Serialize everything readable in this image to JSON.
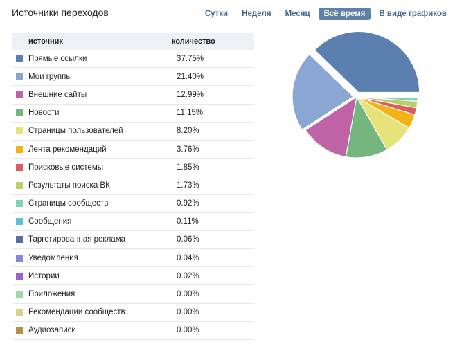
{
  "header": {
    "title": "Источники переходов",
    "tabs": [
      {
        "label": "Сутки",
        "active": false
      },
      {
        "label": "Неделя",
        "active": false
      },
      {
        "label": "Месяц",
        "active": false
      },
      {
        "label": "Всё время",
        "active": true
      },
      {
        "label": "В виде графиков",
        "active": false
      }
    ]
  },
  "table": {
    "col_source": "источник",
    "col_count": "количество",
    "rows": [
      {
        "name": "Прямые ссылки",
        "value": "37.75%",
        "color": "#5b7fae"
      },
      {
        "name": "Мои группы",
        "value": "21.40%",
        "color": "#89a7d2"
      },
      {
        "name": "Внешние сайты",
        "value": "12.99%",
        "color": "#bf62a6"
      },
      {
        "name": "Новости",
        "value": "11.15%",
        "color": "#75b57e"
      },
      {
        "name": "Страницы пользователей",
        "value": "8.20%",
        "color": "#e8e27a"
      },
      {
        "name": "Лента рекомендаций",
        "value": "3.76%",
        "color": "#f3b215"
      },
      {
        "name": "Поисковые системы",
        "value": "1.85%",
        "color": "#e05c5c"
      },
      {
        "name": "Результаты поиска ВК",
        "value": "1.73%",
        "color": "#b5d167"
      },
      {
        "name": "Страницы сообществ",
        "value": "0.92%",
        "color": "#7fd3b1"
      },
      {
        "name": "Сообщения",
        "value": "0.11%",
        "color": "#5cc2d6"
      },
      {
        "name": "Таргетированная реклама",
        "value": "0.06%",
        "color": "#5d6aa8"
      },
      {
        "name": "Уведомления",
        "value": "0.04%",
        "color": "#8a87d6"
      },
      {
        "name": "Истории",
        "value": "0.02%",
        "color": "#9b62c7"
      },
      {
        "name": "Приложения",
        "value": "0.00%",
        "color": "#9ed8a4"
      },
      {
        "name": "Рекомендации сообществ",
        "value": "0.00%",
        "color": "#d6d18e"
      },
      {
        "name": "Аудиозаписи",
        "value": "0.00%",
        "color": "#b3934a"
      }
    ]
  },
  "chart_data": {
    "type": "pie",
    "labels": [
      "Прямые ссылки",
      "Мои группы",
      "Внешние сайты",
      "Новости",
      "Страницы пользователей",
      "Лента рекомендаций",
      "Поисковые системы",
      "Результаты поиска ВК",
      "Страницы сообществ",
      "Сообщения",
      "Таргетированная реклама",
      "Уведомления",
      "Истории",
      "Приложения",
      "Рекомендации сообществ",
      "Аудиозаписи"
    ],
    "values": [
      37.75,
      21.4,
      12.99,
      11.15,
      8.2,
      3.76,
      1.85,
      1.73,
      0.92,
      0.11,
      0.06,
      0.04,
      0.02,
      0.0,
      0.0,
      0.0
    ],
    "colors": [
      "#5b7fae",
      "#89a7d2",
      "#bf62a6",
      "#75b57e",
      "#e8e27a",
      "#f3b215",
      "#e05c5c",
      "#b5d167",
      "#7fd3b1",
      "#5cc2d6",
      "#5d6aa8",
      "#8a87d6",
      "#9b62c7",
      "#9ed8a4",
      "#d6d18e",
      "#b3934a"
    ],
    "legend": "none"
  }
}
